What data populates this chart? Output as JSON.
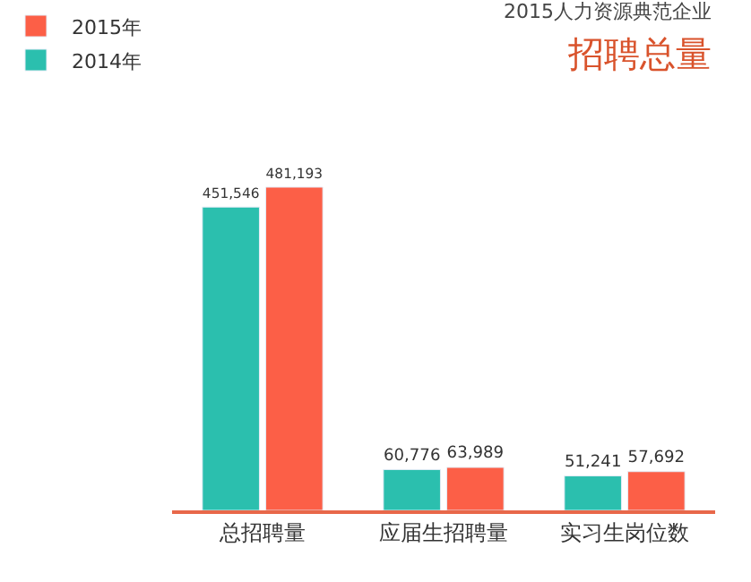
{
  "chart_data": {
    "type": "bar",
    "title": "招聘总量",
    "subtitle": "2015人力资源典范企业",
    "categories": [
      "总招聘量",
      "应届生招聘量",
      "实习生岗位数"
    ],
    "series": [
      {
        "name": "2014年",
        "color": "#2bbfae",
        "values": [
          451546,
          60776,
          51241
        ],
        "value_labels": [
          "451,546",
          "60,776",
          "51,241"
        ]
      },
      {
        "name": "2015年",
        "color": "#fc5f47",
        "values": [
          481193,
          63989,
          57692
        ],
        "value_labels": [
          "481,193",
          "63,989",
          "57,692"
        ]
      }
    ],
    "legend": "top left",
    "tick_labels": "x"
  }
}
